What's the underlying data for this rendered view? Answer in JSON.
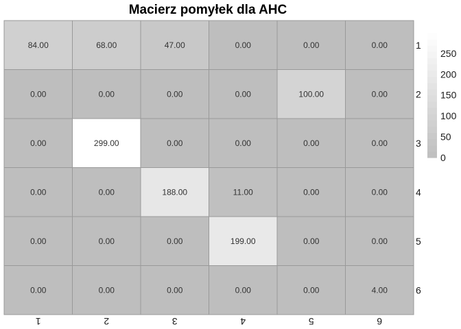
{
  "chart_data": {
    "type": "heatmap",
    "title": "Macierz pomyłek dla AHC",
    "xlabel": "",
    "ylabel": "",
    "x_categories": [
      "1",
      "2",
      "3",
      "4",
      "5",
      "6"
    ],
    "y_categories": [
      "1",
      "2",
      "3",
      "4",
      "5",
      "6"
    ],
    "values": [
      [
        84,
        68,
        47,
        0,
        0,
        0
      ],
      [
        0,
        0,
        0,
        0,
        100,
        0
      ],
      [
        0,
        299,
        0,
        0,
        0,
        0
      ],
      [
        0,
        0,
        188,
        11,
        0,
        0
      ],
      [
        0,
        0,
        0,
        199,
        0,
        0
      ],
      [
        0,
        0,
        0,
        0,
        0,
        4
      ]
    ],
    "cell_labels": [
      [
        "84.00",
        "68.00",
        "47.00",
        "0.00",
        "0.00",
        "0.00"
      ],
      [
        "0.00",
        "0.00",
        "0.00",
        "0.00",
        "100.00",
        "0.00"
      ],
      [
        "0.00",
        "299.00",
        "0.00",
        "0.00",
        "0.00",
        "0.00"
      ],
      [
        "0.00",
        "0.00",
        "188.00",
        "11.00",
        "0.00",
        "0.00"
      ],
      [
        "0.00",
        "0.00",
        "0.00",
        "199.00",
        "0.00",
        "0.00"
      ],
      [
        "0.00",
        "0.00",
        "0.00",
        "0.00",
        "0.00",
        "4.00"
      ]
    ],
    "color_range": [
      0,
      299
    ],
    "color_low": "#bebebe",
    "color_high": "#ffffff",
    "cell_border_color": "#999999",
    "legend": {
      "position": "right",
      "ticks": [
        0,
        50,
        100,
        150,
        200,
        250
      ]
    },
    "grid": false
  }
}
